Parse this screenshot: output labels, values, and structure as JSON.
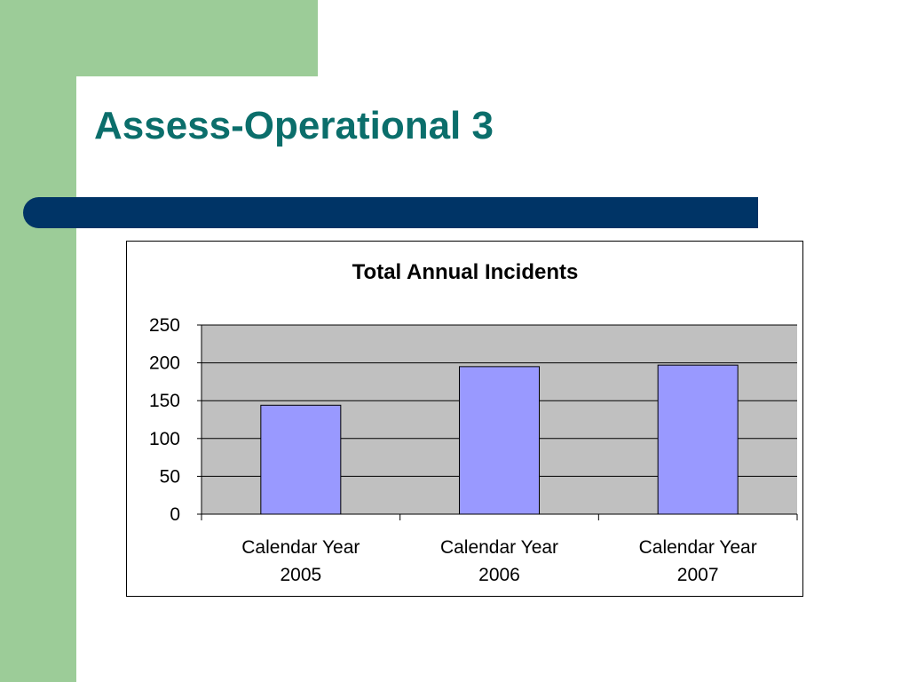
{
  "slide": {
    "title": "Assess-Operational 3"
  },
  "colors": {
    "green_band": "#9ccc98",
    "title_teal": "#0b6e6b",
    "rule_navy": "#003466",
    "plot_bg": "#c0c0c0",
    "bar_fill": "#9999ff"
  },
  "chart_data": {
    "type": "bar",
    "title": "Total Annual Incidents",
    "categories": [
      [
        "Calendar Year",
        "2005"
      ],
      [
        "Calendar Year",
        "2006"
      ],
      [
        "Calendar Year",
        "2007"
      ]
    ],
    "values": [
      144,
      195,
      197
    ],
    "ylim": [
      0,
      250
    ],
    "yticks": [
      "0",
      "50",
      "100",
      "150",
      "200",
      "250"
    ],
    "grid": true,
    "legend": "none"
  }
}
